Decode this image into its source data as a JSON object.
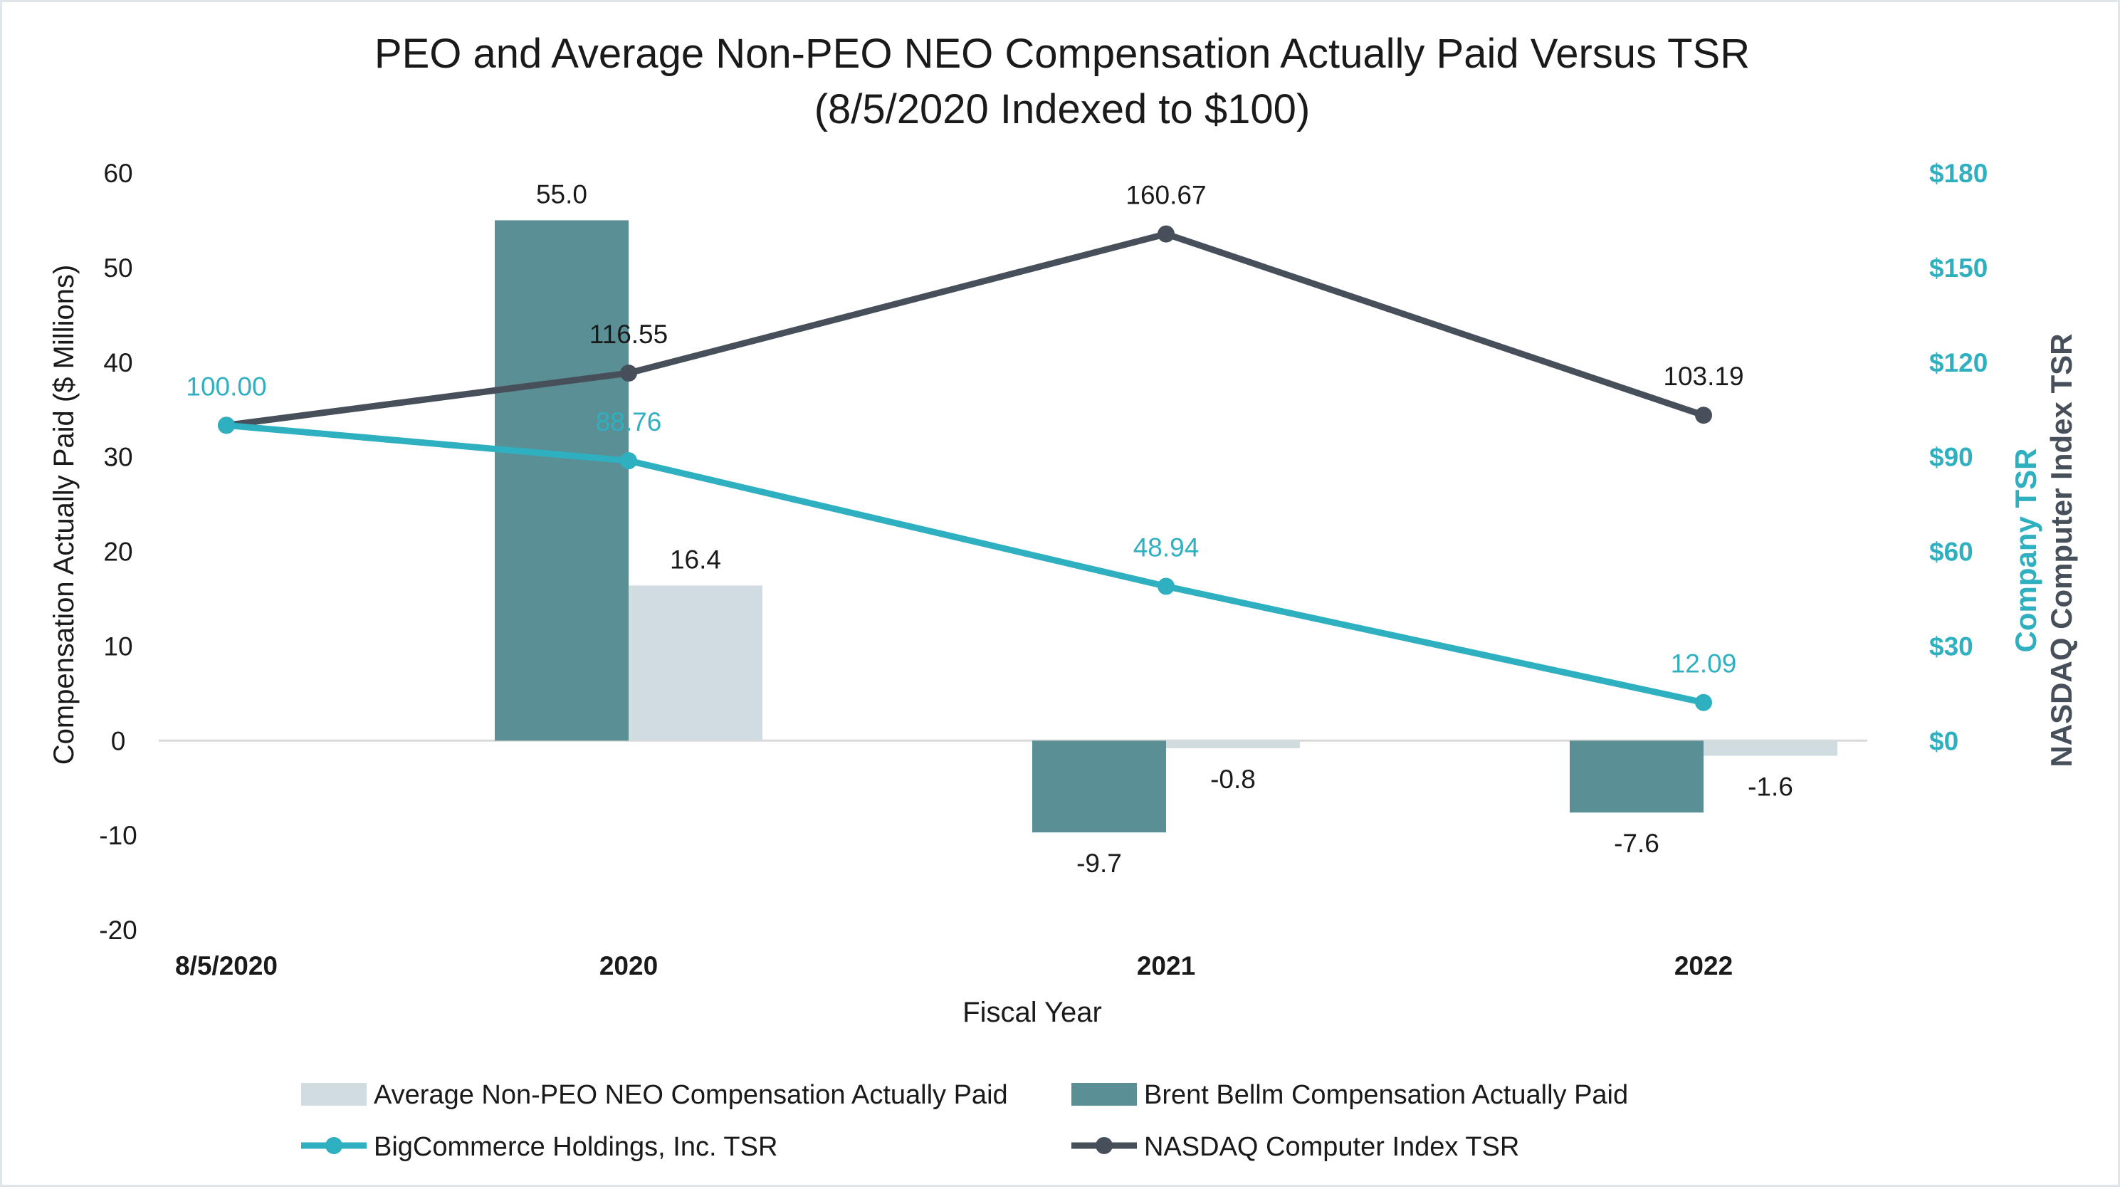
{
  "colors": {
    "peo_bar": "#5a8f96",
    "neo_bar": "#d0dcdf",
    "company_tsr": "#2fb0c0",
    "nasdaq_tsr": "#47505a",
    "zero_line": "#d9d9d9"
  },
  "chart_data": {
    "type": "bar+line",
    "title_line1": "PEO and Average Non-PEO NEO Compensation Actually Paid Versus TSR",
    "title_line2": "(8/5/2020 Indexed to $100)",
    "xlabel": "Fiscal Year",
    "ylabel_left": "Compensation Actually Paid ($ Millions)",
    "ylabel_right_company": "Company TSR",
    "ylabel_right_nasdaq": "NASDAQ Computer Index TSR",
    "categories": [
      "8/5/2020",
      "2020",
      "2021",
      "2022"
    ],
    "left_axis": {
      "min": -20,
      "max": 60,
      "ticks": [
        "60",
        "50",
        "40",
        "30",
        "20",
        "10",
        "0",
        "-10",
        "-20"
      ]
    },
    "right_axis": {
      "min": 0,
      "max": 180,
      "ticks": [
        "$180",
        "$150",
        "$120",
        "$90",
        "$60",
        "$30",
        "$0"
      ]
    },
    "bar_series": [
      {
        "name": "Brent Bellm Compensation Actually Paid",
        "axis": "left",
        "values": [
          null,
          55.0,
          -9.7,
          -7.6
        ],
        "labels": [
          "",
          "55.0",
          "-9.7",
          "-7.6"
        ]
      },
      {
        "name": "Average Non-PEO NEO Compensation Actually Paid",
        "axis": "left",
        "values": [
          null,
          16.4,
          -0.8,
          -1.6
        ],
        "labels": [
          "",
          "16.4",
          "-0.8",
          "-1.6"
        ]
      }
    ],
    "line_series": [
      {
        "name": "BigCommerce Holdings, Inc. TSR",
        "axis": "right",
        "values": [
          100.0,
          88.76,
          48.94,
          12.09
        ],
        "labels": [
          "100.00",
          "88.76",
          "48.94",
          "12.09"
        ]
      },
      {
        "name": "NASDAQ Computer Index TSR",
        "axis": "right",
        "values": [
          100.0,
          116.55,
          160.67,
          103.19
        ],
        "labels": [
          "",
          "116.55",
          "160.67",
          "103.19"
        ]
      }
    ],
    "legend": [
      "Average Non-PEO NEO Compensation Actually Paid",
      "Brent Bellm Compensation Actually Paid",
      "BigCommerce Holdings, Inc. TSR",
      "NASDAQ Computer Index TSR"
    ],
    "legend_position": "bottom"
  }
}
